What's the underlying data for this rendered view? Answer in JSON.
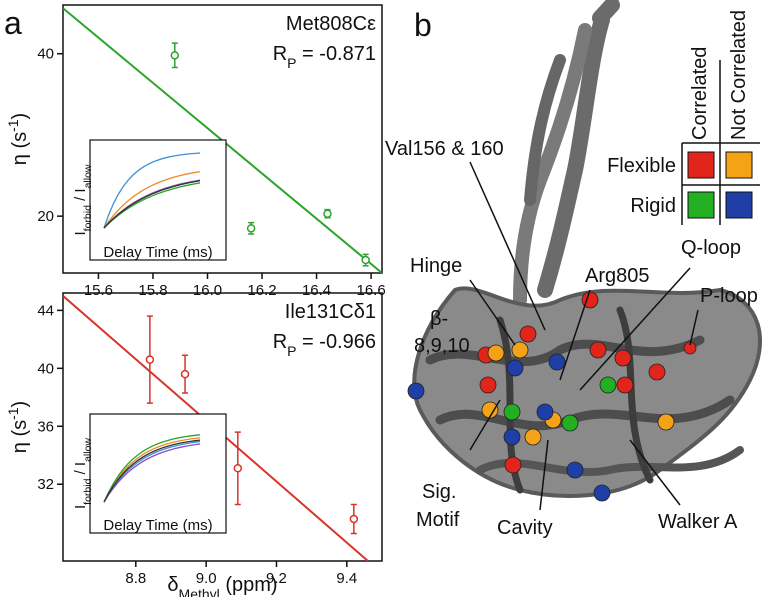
{
  "panel_a": {
    "label": "a"
  },
  "chart_data": [
    {
      "type": "scatter",
      "x": [
        15.88,
        16.16,
        16.44,
        16.58
      ],
      "values": [
        39.8,
        18.5,
        20.3,
        14.6
      ],
      "errors": [
        1.5,
        0.7,
        0.5,
        0.7
      ],
      "color": "#2aa52a",
      "xlim": [
        15.47,
        16.64
      ],
      "ylim": [
        13,
        46
      ],
      "xticks": [
        15.6,
        15.8,
        {
          "value": 16,
          "label": "16.0"
        },
        16.2,
        16.4,
        16.6
      ],
      "yticks": [
        20,
        40
      ],
      "fit": {
        "x": [
          15.47,
          16.64
        ],
        "y": [
          45.6,
          13.0
        ]
      },
      "ylabel": [
        "η (s",
        "-1",
        ")"
      ],
      "annotation": "Met808Cε",
      "rp": [
        "R",
        "P",
        " = -0.871"
      ],
      "inset_xlabel": "Delay Time (ms)",
      "inset_ylabel": [
        "I",
        "forbid",
        " / I",
        "allow"
      ]
    },
    {
      "type": "scatter",
      "x": [
        8.84,
        8.94,
        9.09,
        9.42
      ],
      "values": [
        40.6,
        39.6,
        33.1,
        29.6
      ],
      "errors": [
        3.0,
        1.3,
        2.5,
        1.0
      ],
      "color": "#d8342a",
      "xlim": [
        8.593,
        9.5
      ],
      "ylim": [
        26.7,
        45.2
      ],
      "xticks": [
        8.8,
        {
          "value": 9,
          "label": "9.0"
        },
        9.2,
        9.4
      ],
      "yticks": [
        32,
        36,
        40,
        44
      ],
      "fit": {
        "x": [
          8.593,
          9.46
        ],
        "y": [
          45.0,
          26.7
        ]
      },
      "ylabel": [
        "η (s",
        "-1",
        ")"
      ],
      "xlabel": [
        "δ",
        "Methyl",
        " (ppm)"
      ],
      "annotation": "Ile131Cδ1",
      "rp": [
        "R",
        "P",
        " = -0.966"
      ],
      "inset_xlabel": "Delay Time (ms)",
      "inset_ylabel": [
        "I",
        "forbid",
        " / I",
        "allow"
      ]
    }
  ],
  "panel_b": {
    "label": "b",
    "labels": [
      "Val156 & 160",
      "Hinge",
      "Arg805",
      "Q-loop",
      "P-loop",
      "β-",
      "8,9,10",
      "Sig.",
      "Motif",
      "Cavity",
      "Walker A"
    ],
    "legend": {
      "columns": [
        "Correlated",
        "Not Correlated"
      ],
      "rows": [
        "Flexible",
        "Rigid"
      ]
    }
  }
}
